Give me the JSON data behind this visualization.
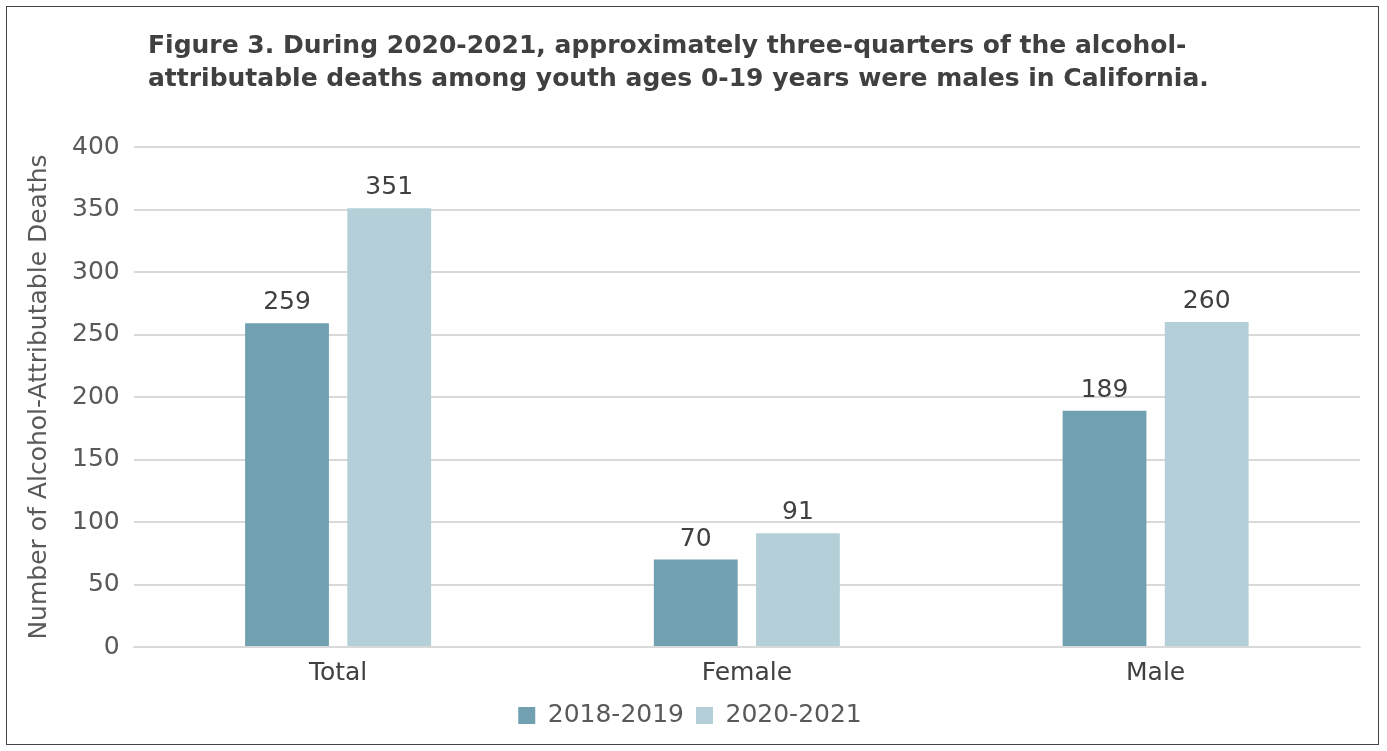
{
  "chart_data": {
    "type": "bar",
    "title": "Figure 3. During 2020-2021, approximately three-quarters of the alcohol-attributable deaths among youth ages 0-19 years were males in California.",
    "ylabel": "Number of Alcohol-Attributable Deaths",
    "categories": [
      "Total",
      "Female",
      "Male"
    ],
    "series": [
      {
        "name": "2018-2019",
        "color": "#71a0b0",
        "values": [
          259,
          70,
          189
        ]
      },
      {
        "name": "2020-2021",
        "color": "#b5cfd8",
        "values": [
          351,
          91,
          260
        ]
      }
    ],
    "ylim": [
      0,
      400
    ],
    "yticks": [
      0,
      50,
      100,
      150,
      200,
      250,
      300,
      350,
      400
    ],
    "grid": "y",
    "legend": "bottom",
    "data_labels": true
  }
}
